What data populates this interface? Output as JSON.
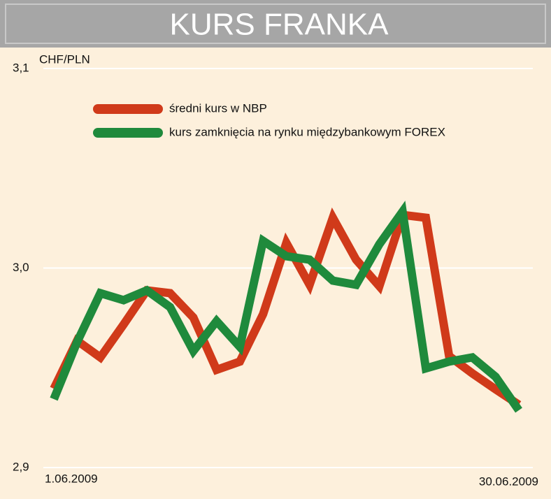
{
  "chart_data": {
    "type": "line",
    "title": "KURS FRANKA",
    "y_label": "CHF/PLN",
    "categories": [
      "1.06.2009",
      null,
      null,
      null,
      null,
      null,
      null,
      null,
      null,
      null,
      null,
      null,
      null,
      null,
      null,
      null,
      null,
      null,
      null,
      null,
      "30.06.2009"
    ],
    "series": [
      {
        "name": "średni kurs w NBP",
        "color": "#d03a1a",
        "values": [
          2.9395,
          2.9636,
          2.9552,
          2.9717,
          2.9888,
          2.9874,
          2.9752,
          2.949,
          2.9531,
          2.9769,
          3.0126,
          2.9916,
          3.0252,
          3.0042,
          2.9909,
          3.0266,
          3.0252,
          2.9559,
          2.9472,
          2.9392,
          2.9315
        ]
      },
      {
        "name": "kurs zamknięcia na rynku międzybankowym FOREX",
        "color": "#1f8a3c",
        "values": [
          2.9343,
          2.9629,
          2.9874,
          2.9839,
          2.9888,
          2.9804,
          2.9584,
          2.9734,
          2.9605,
          3.0136,
          3.0059,
          3.0042,
          2.9937,
          2.9916,
          3.0119,
          3.0283,
          2.9497,
          2.9531,
          2.9552,
          2.9455,
          2.9287
        ]
      }
    ],
    "ylim": [
      2.9,
      3.1
    ],
    "yticks": [
      {
        "value": 2.9,
        "label": "2,9"
      },
      {
        "value": 3.0,
        "label": "3,0"
      },
      {
        "value": 3.1,
        "label": "3,1"
      }
    ],
    "grid": true
  }
}
